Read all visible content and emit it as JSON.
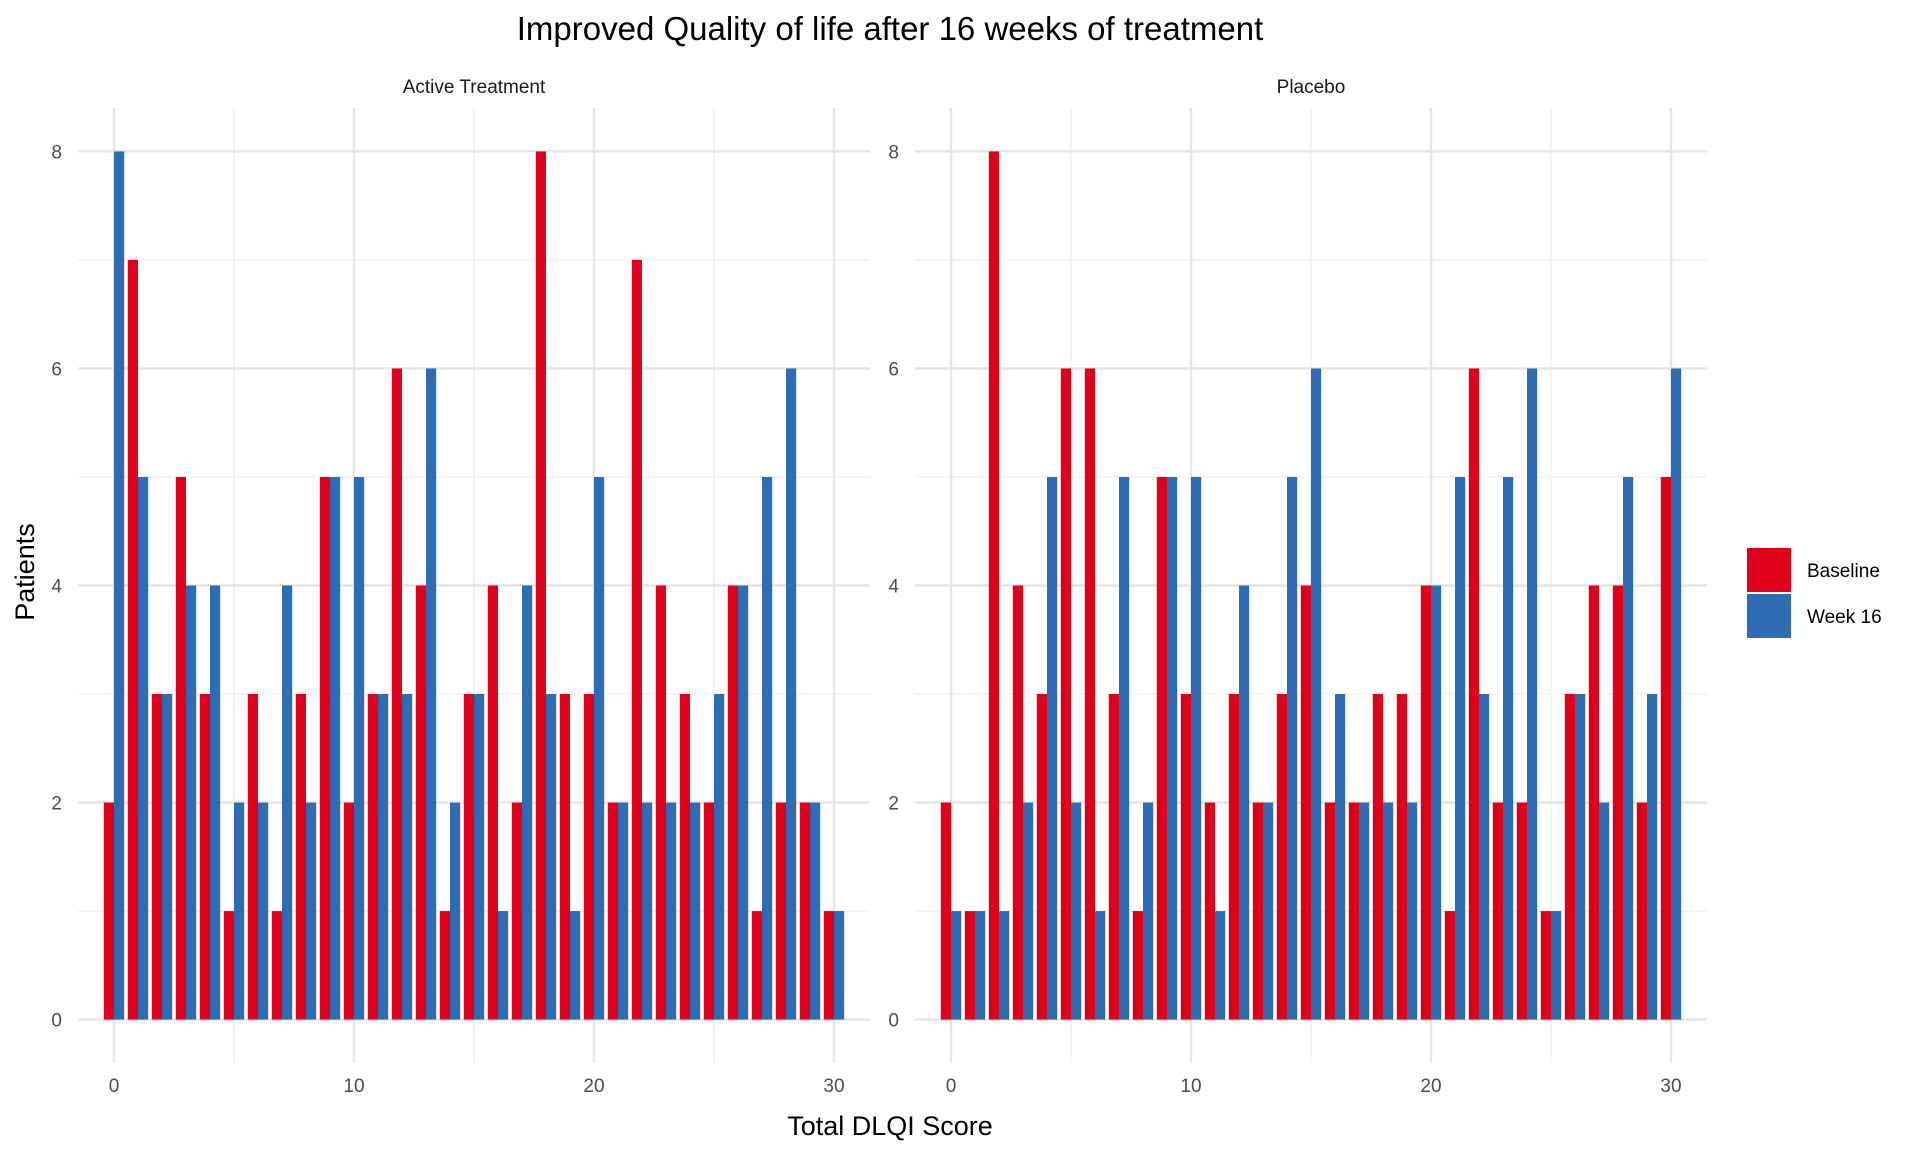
{
  "chart_data": {
    "type": "bar",
    "title": "Improved Quality of life after 16 weeks of treatment",
    "xlabel": "Total DLQI Score",
    "ylabel": "Patients",
    "xlim": [
      -1.5,
      31.5
    ],
    "ylim": [
      -0.4,
      8.4
    ],
    "x_ticks": [
      0,
      10,
      20,
      30
    ],
    "y_ticks": [
      0,
      2,
      4,
      6,
      8
    ],
    "grid": true,
    "legend_position": "right",
    "x": [
      0,
      1,
      2,
      3,
      4,
      5,
      6,
      7,
      8,
      9,
      10,
      11,
      12,
      13,
      14,
      15,
      16,
      17,
      18,
      19,
      20,
      21,
      22,
      23,
      24,
      25,
      26,
      27,
      28,
      29,
      30
    ],
    "legend": [
      {
        "name": "Baseline",
        "color": "#e0001b"
      },
      {
        "name": "Week 16",
        "color": "#2e6db4"
      }
    ],
    "panels": [
      {
        "name": "Active Treatment",
        "series": [
          {
            "name": "Baseline",
            "values": [
              2,
              7,
              3,
              5,
              3,
              1,
              3,
              1,
              3,
              5,
              2,
              3,
              6,
              4,
              1,
              3,
              4,
              2,
              8,
              3,
              3,
              2,
              7,
              4,
              3,
              2,
              4,
              1,
              2,
              2,
              1
            ]
          },
          {
            "name": "Week 16",
            "values": [
              8,
              5,
              3,
              4,
              4,
              2,
              2,
              4,
              2,
              5,
              5,
              3,
              3,
              6,
              2,
              3,
              1,
              4,
              3,
              1,
              5,
              2,
              2,
              2,
              2,
              3,
              4,
              5,
              6,
              2,
              1
            ]
          }
        ]
      },
      {
        "name": "Placebo",
        "series": [
          {
            "name": "Baseline",
            "values": [
              2,
              1,
              8,
              4,
              3,
              6,
              6,
              3,
              1,
              5,
              3,
              2,
              3,
              2,
              3,
              4,
              2,
              2,
              3,
              3,
              4,
              1,
              6,
              2,
              2,
              1,
              3,
              4,
              4,
              2,
              5
            ]
          },
          {
            "name": "Week 16",
            "values": [
              1,
              1,
              1,
              2,
              5,
              2,
              1,
              5,
              2,
              5,
              5,
              1,
              4,
              2,
              5,
              6,
              3,
              2,
              2,
              2,
              4,
              5,
              3,
              5,
              6,
              1,
              3,
              2,
              5,
              3,
              6
            ]
          }
        ]
      }
    ]
  }
}
